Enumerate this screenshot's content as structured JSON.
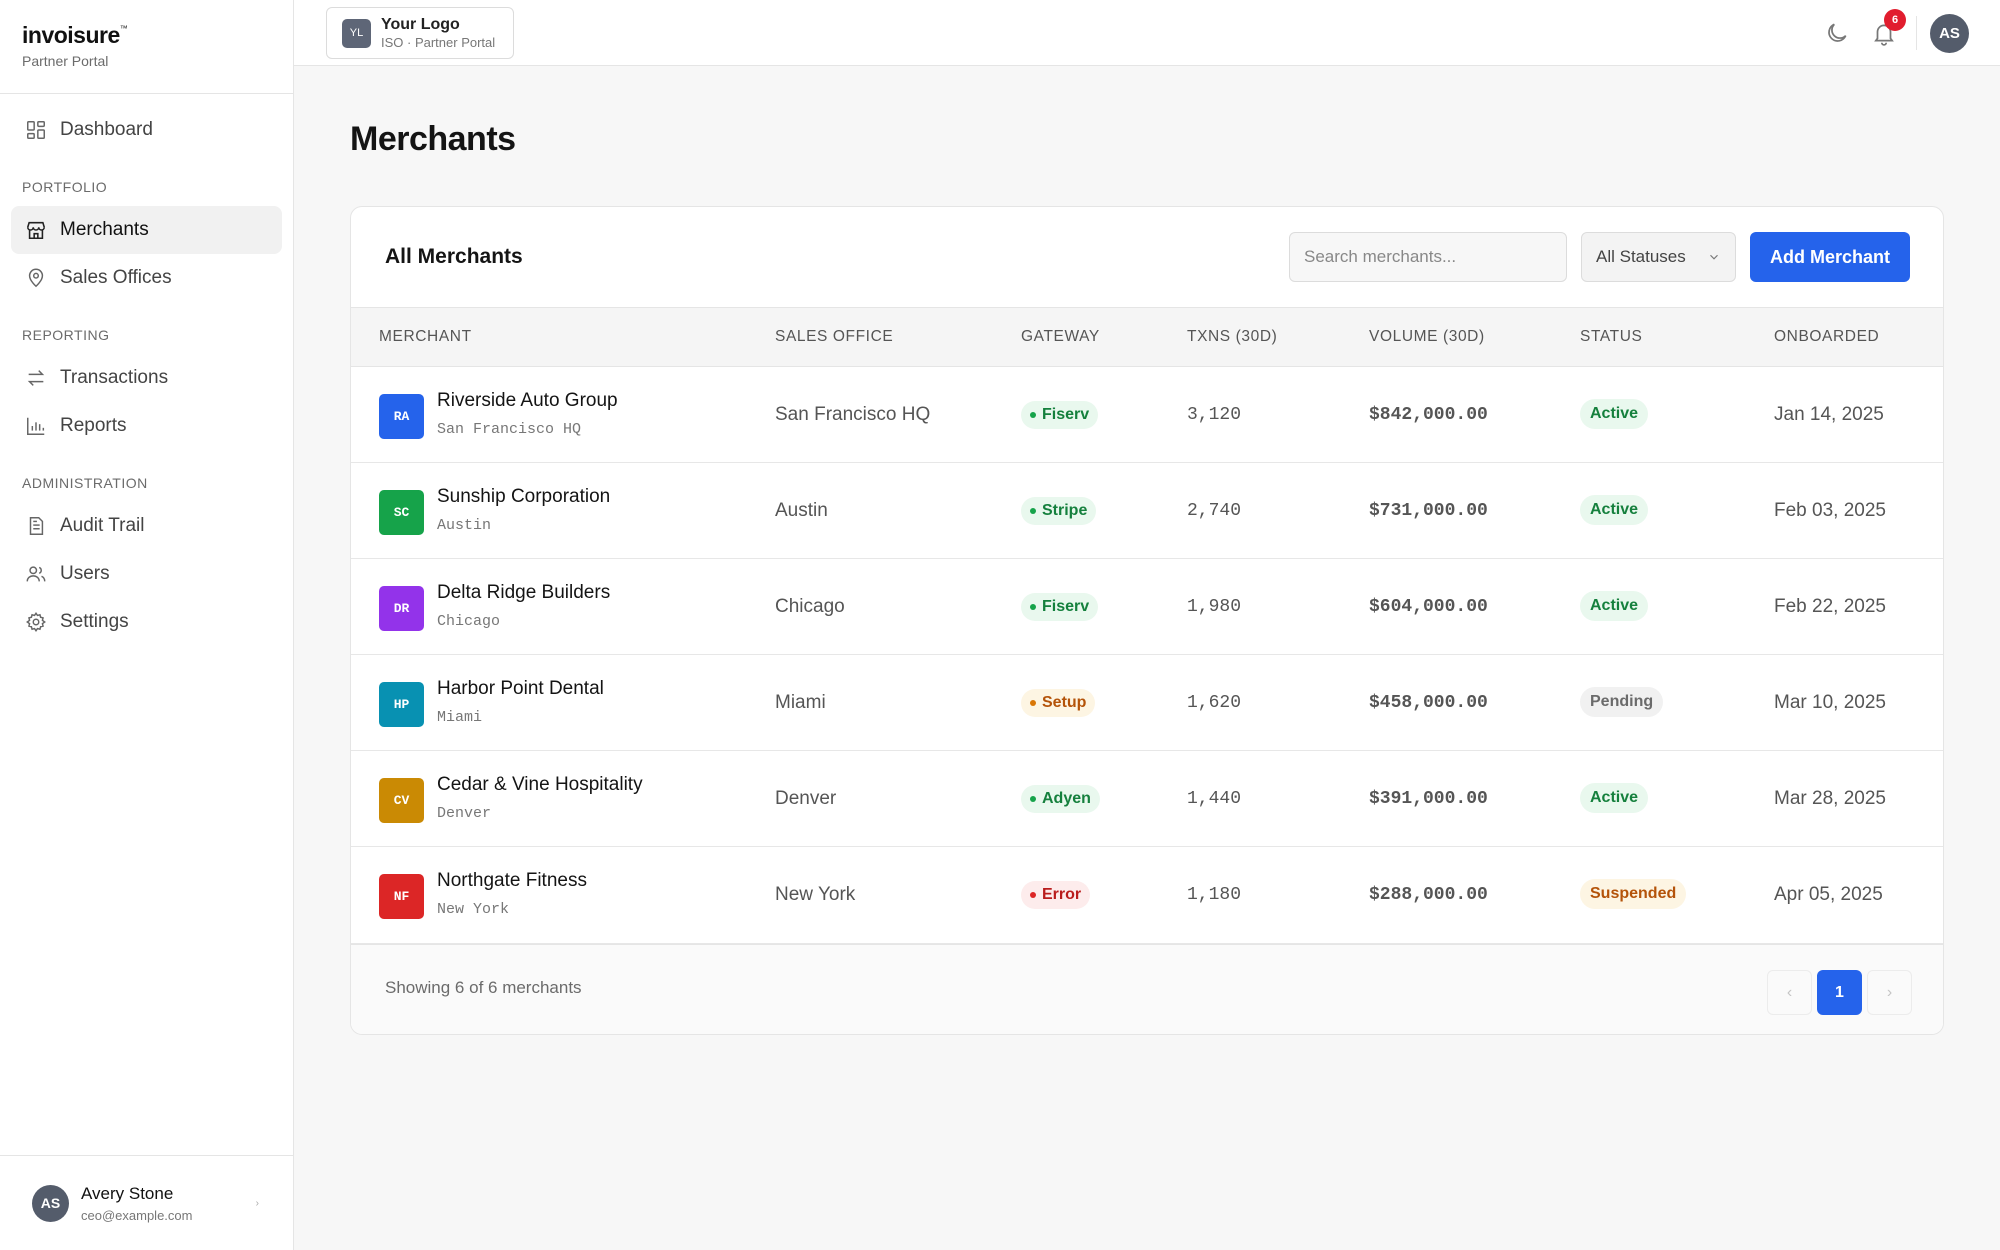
{
  "brand": {
    "name": "invoisure",
    "trademark": "™",
    "subtitle": "Partner Portal"
  },
  "sidebar": {
    "dashboard": {
      "label": "Dashboard",
      "icon": "dashboard-icon"
    },
    "sections": [
      {
        "title": "PORTFOLIO"
      },
      {
        "title": "REPORTING"
      },
      {
        "title": "ADMINISTRATION"
      }
    ],
    "items": [
      {
        "label": "Merchants",
        "icon": "store-icon",
        "active": true
      },
      {
        "label": "Sales Offices",
        "icon": "map-pin-icon"
      },
      {
        "label": "Transactions",
        "icon": "arrows-swap-icon"
      },
      {
        "label": "Reports",
        "icon": "bar-chart-icon"
      },
      {
        "label": "Audit Trail",
        "icon": "document-icon"
      },
      {
        "label": "Users",
        "icon": "users-icon"
      },
      {
        "label": "Settings",
        "icon": "gear-icon"
      }
    ],
    "user": {
      "initials": "AS",
      "name": "Avery Stone",
      "email": "ceo@example.com",
      "chevron": "›"
    }
  },
  "topbar": {
    "logo": {
      "badge": "YL",
      "title": "Your Logo",
      "subtitle": "ISO · Partner Portal"
    },
    "notifications_count": "6",
    "avatar_initials": "AS"
  },
  "page": {
    "title": "Merchants"
  },
  "card": {
    "title": "All Merchants",
    "search_placeholder": "Search merchants...",
    "status_filter": "All Statuses",
    "add_button": "Add Merchant"
  },
  "table": {
    "headers": {
      "merchant": "MERCHANT",
      "office": "SALES OFFICE",
      "gateway": "GATEWAY",
      "txns": "TXNS (30D)",
      "volume": "VOLUME (30D)",
      "status": "STATUS",
      "onboarded": "ONBOARDED"
    },
    "rows": [
      {
        "initials": "RA",
        "color": "#2563eb",
        "name": "Riverside Auto Group",
        "city": "San Francisco HQ",
        "office": "San Francisco HQ",
        "gateway": "Fiserv",
        "gateway_tone": "green",
        "txns": "3,120",
        "volume": "$842,000.00",
        "status": "Active",
        "status_tone": "green",
        "onboarded": "Jan 14, 2025"
      },
      {
        "initials": "SC",
        "color": "#16a34a",
        "name": "Sunship Corporation",
        "city": "Austin",
        "office": "Austin",
        "gateway": "Stripe",
        "gateway_tone": "green",
        "txns": "2,740",
        "volume": "$731,000.00",
        "status": "Active",
        "status_tone": "green",
        "onboarded": "Feb 03, 2025"
      },
      {
        "initials": "DR",
        "color": "#9333ea",
        "name": "Delta Ridge Builders",
        "city": "Chicago",
        "office": "Chicago",
        "gateway": "Fiserv",
        "gateway_tone": "green",
        "txns": "1,980",
        "volume": "$604,000.00",
        "status": "Active",
        "status_tone": "green",
        "onboarded": "Feb 22, 2025"
      },
      {
        "initials": "HP",
        "color": "#0891b2",
        "name": "Harbor Point Dental",
        "city": "Miami",
        "office": "Miami",
        "gateway": "Setup",
        "gateway_tone": "amber",
        "txns": "1,620",
        "volume": "$458,000.00",
        "status": "Pending",
        "status_tone": "gray",
        "onboarded": "Mar 10, 2025"
      },
      {
        "initials": "CV",
        "color": "#ca8a04",
        "name": "Cedar & Vine Hospitality",
        "city": "Denver",
        "office": "Denver",
        "gateway": "Adyen",
        "gateway_tone": "green",
        "txns": "1,440",
        "volume": "$391,000.00",
        "status": "Active",
        "status_tone": "green",
        "onboarded": "Mar 28, 2025"
      },
      {
        "initials": "NF",
        "color": "#dc2626",
        "name": "Northgate Fitness",
        "city": "New York",
        "office": "New York",
        "gateway": "Error",
        "gateway_tone": "red",
        "txns": "1,180",
        "volume": "$288,000.00",
        "status": "Suspended",
        "status_tone": "amber",
        "onboarded": "Apr 05, 2025"
      }
    ]
  },
  "footer": {
    "showing": "Showing 6 of 6 merchants",
    "prev": "‹",
    "page": "1",
    "next": "›"
  },
  "colors": {
    "accent": "#2563eb",
    "tones": {
      "green": {
        "bg": "#e9f8ee",
        "fg": "#15803d",
        "dot": "#16a34a"
      },
      "amber": {
        "bg": "#fdf5e3",
        "fg": "#b45309",
        "dot": "#d97706"
      },
      "red": {
        "bg": "#fdecec",
        "fg": "#b91c1c",
        "dot": "#dc2626"
      },
      "gray": {
        "bg": "#f1f1f1",
        "fg": "#6b6b6b",
        "dot": "#9ca3af"
      }
    }
  }
}
